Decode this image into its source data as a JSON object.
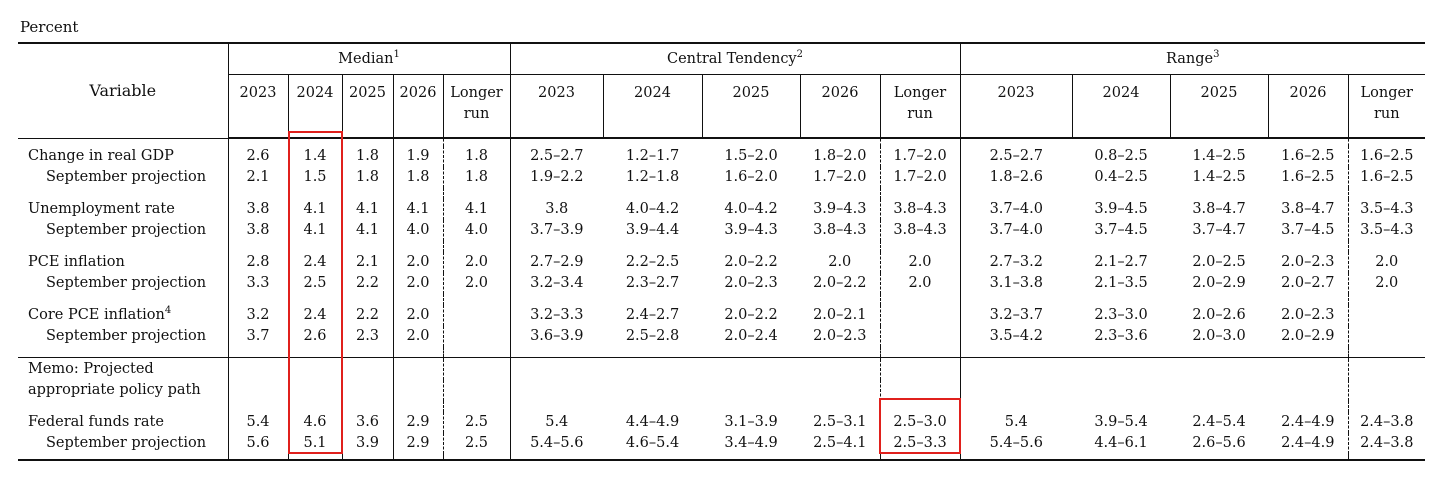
{
  "unit_label": "Percent",
  "header": {
    "variable": "Variable",
    "groups": [
      {
        "label": "Median",
        "note": "1"
      },
      {
        "label": "Central Tendency",
        "note": "2"
      },
      {
        "label": "Range",
        "note": "3"
      }
    ],
    "years": [
      "2023",
      "2024",
      "2025",
      "2026"
    ],
    "longer_run": [
      "Longer",
      "run"
    ]
  },
  "rows": [
    {
      "label": "Change in real GDP",
      "sub": false,
      "values": [
        "2.6",
        "1.4",
        "1.8",
        "1.9",
        "1.8",
        "2.5–2.7",
        "1.2–1.7",
        "1.5–2.0",
        "1.8–2.0",
        "1.7–2.0",
        "2.5–2.7",
        "0.8–2.5",
        "1.4–2.5",
        "1.6–2.5",
        "1.6–2.5"
      ]
    },
    {
      "label": "September projection",
      "sub": true,
      "values": [
        "2.1",
        "1.5",
        "1.8",
        "1.8",
        "1.8",
        "1.9–2.2",
        "1.2–1.8",
        "1.6–2.0",
        "1.7–2.0",
        "1.7–2.0",
        "1.8–2.6",
        "0.4–2.5",
        "1.4–2.5",
        "1.6–2.5",
        "1.6–2.5"
      ]
    },
    {
      "label": "Unemployment rate",
      "sub": false,
      "values": [
        "3.8",
        "4.1",
        "4.1",
        "4.1",
        "4.1",
        "3.8",
        "4.0–4.2",
        "4.0–4.2",
        "3.9–4.3",
        "3.8–4.3",
        "3.7–4.0",
        "3.9–4.5",
        "3.8–4.7",
        "3.8–4.7",
        "3.5–4.3"
      ]
    },
    {
      "label": "September projection",
      "sub": true,
      "values": [
        "3.8",
        "4.1",
        "4.1",
        "4.0",
        "4.0",
        "3.7–3.9",
        "3.9–4.4",
        "3.9–4.3",
        "3.8–4.3",
        "3.8–4.3",
        "3.7–4.0",
        "3.7–4.5",
        "3.7–4.7",
        "3.7–4.5",
        "3.5–4.3"
      ]
    },
    {
      "label": "PCE inflation",
      "sub": false,
      "values": [
        "2.8",
        "2.4",
        "2.1",
        "2.0",
        "2.0",
        "2.7–2.9",
        "2.2–2.5",
        "2.0–2.2",
        "2.0",
        "2.0",
        "2.7–3.2",
        "2.1–2.7",
        "2.0–2.5",
        "2.0–2.3",
        "2.0"
      ]
    },
    {
      "label": "September projection",
      "sub": true,
      "values": [
        "3.3",
        "2.5",
        "2.2",
        "2.0",
        "2.0",
        "3.2–3.4",
        "2.3–2.7",
        "2.0–2.3",
        "2.0–2.2",
        "2.0",
        "3.1–3.8",
        "2.1–3.5",
        "2.0–2.9",
        "2.0–2.7",
        "2.0"
      ]
    },
    {
      "label": "Core PCE inflation",
      "note": "4",
      "sub": false,
      "values": [
        "3.2",
        "2.4",
        "2.2",
        "2.0",
        "",
        "3.2–3.3",
        "2.4–2.7",
        "2.0–2.2",
        "2.0–2.1",
        "",
        "3.2–3.7",
        "2.3–3.0",
        "2.0–2.6",
        "2.0–2.3",
        ""
      ]
    },
    {
      "label": "September projection",
      "sub": true,
      "values": [
        "3.7",
        "2.6",
        "2.3",
        "2.0",
        "",
        "3.6–3.9",
        "2.5–2.8",
        "2.0–2.4",
        "2.0–2.3",
        "",
        "3.5–4.2",
        "2.3–3.6",
        "2.0–3.0",
        "2.0–2.9",
        ""
      ]
    }
  ],
  "memo": [
    "Memo: Projected",
    "appropriate policy path"
  ],
  "memo_rows": [
    {
      "label": "Federal funds rate",
      "sub": false,
      "values": [
        "5.4",
        "4.6",
        "3.6",
        "2.9",
        "2.5",
        "5.4",
        "4.4–4.9",
        "3.1–3.9",
        "2.5–3.1",
        "2.5–3.0",
        "5.4",
        "3.9–5.4",
        "2.4–5.4",
        "2.4–4.9",
        "2.4–3.8"
      ]
    },
    {
      "label": "September projection",
      "sub": true,
      "values": [
        "5.6",
        "5.1",
        "3.9",
        "2.9",
        "2.5",
        "5.4–5.6",
        "4.6–5.4",
        "3.4–4.9",
        "2.5–4.1",
        "2.5–3.3",
        "5.4–5.6",
        "4.4–6.1",
        "2.6–5.6",
        "2.4–4.9",
        "2.4–3.8"
      ]
    }
  ],
  "highlight_color": "#e0201c"
}
